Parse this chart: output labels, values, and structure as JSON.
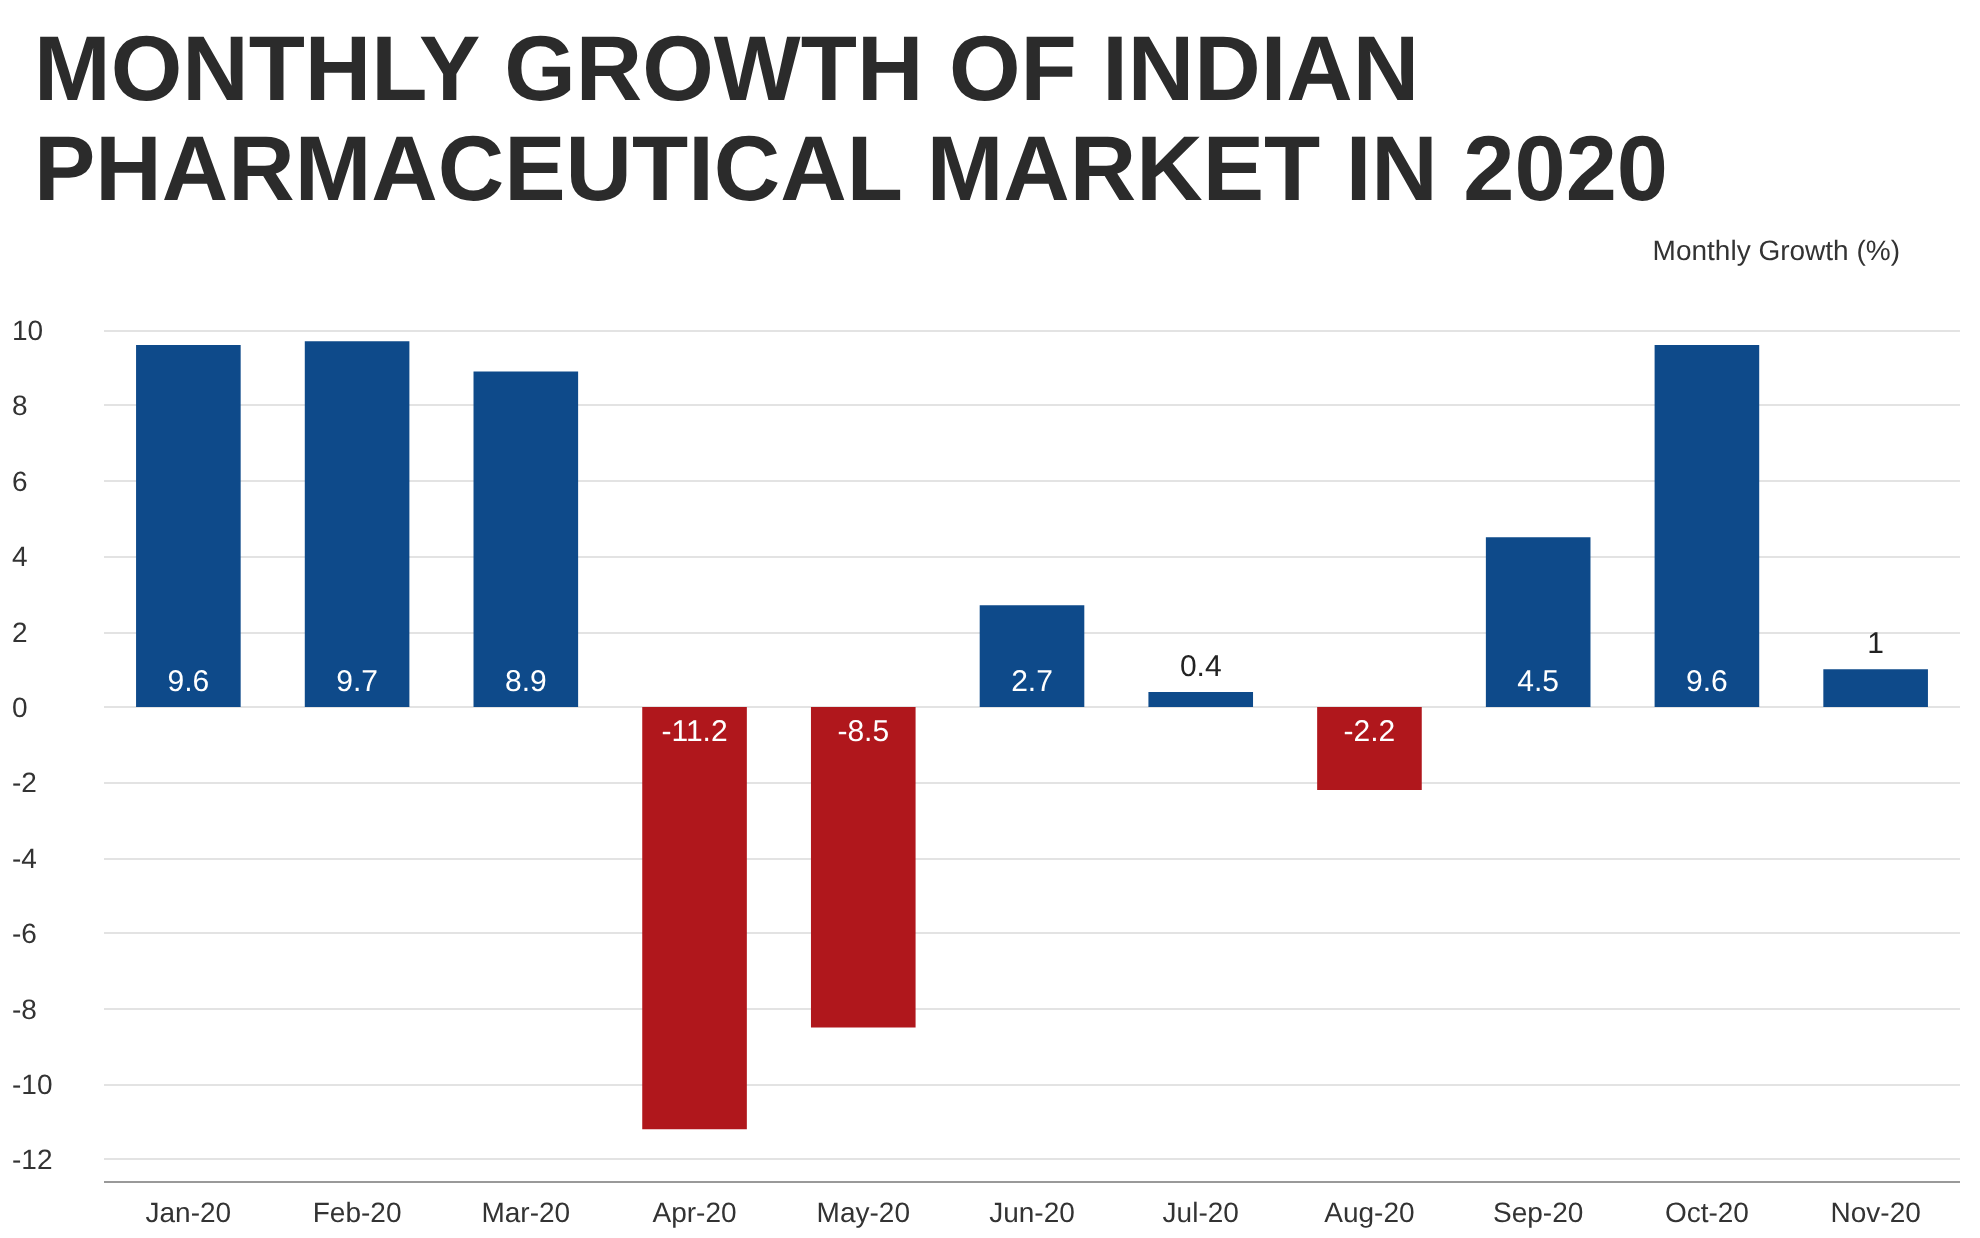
{
  "chart_data": {
    "type": "bar",
    "title": "MONTHLY GROWTH OF INDIAN PHARMACEUTICAL MARKET IN 2020",
    "ylabel": "Monthly Growth (%)",
    "categories": [
      "Jan-20",
      "Feb-20",
      "Mar-20",
      "Apr-20",
      "May-20",
      "Jun-20",
      "Jul-20",
      "Aug-20",
      "Sep-20",
      "Oct-20",
      "Nov-20"
    ],
    "values": [
      9.6,
      9.7,
      8.9,
      -11.2,
      -8.5,
      2.7,
      0.4,
      -2.2,
      4.5,
      9.6,
      1
    ],
    "colors": [
      "#0e4a8a",
      "#0e4a8a",
      "#0e4a8a",
      "#b0171c",
      "#b0171c",
      "#0e4a8a",
      "#0e4a8a",
      "#b0171c",
      "#0e4a8a",
      "#0e4a8a",
      "#0e4a8a"
    ],
    "data_labels": true,
    "ylim": [
      -12.6,
      10
    ],
    "yticks": [
      -12,
      -10,
      -8,
      -6,
      -4,
      -2,
      0,
      2,
      4,
      6,
      8,
      10
    ],
    "grid": "y"
  }
}
